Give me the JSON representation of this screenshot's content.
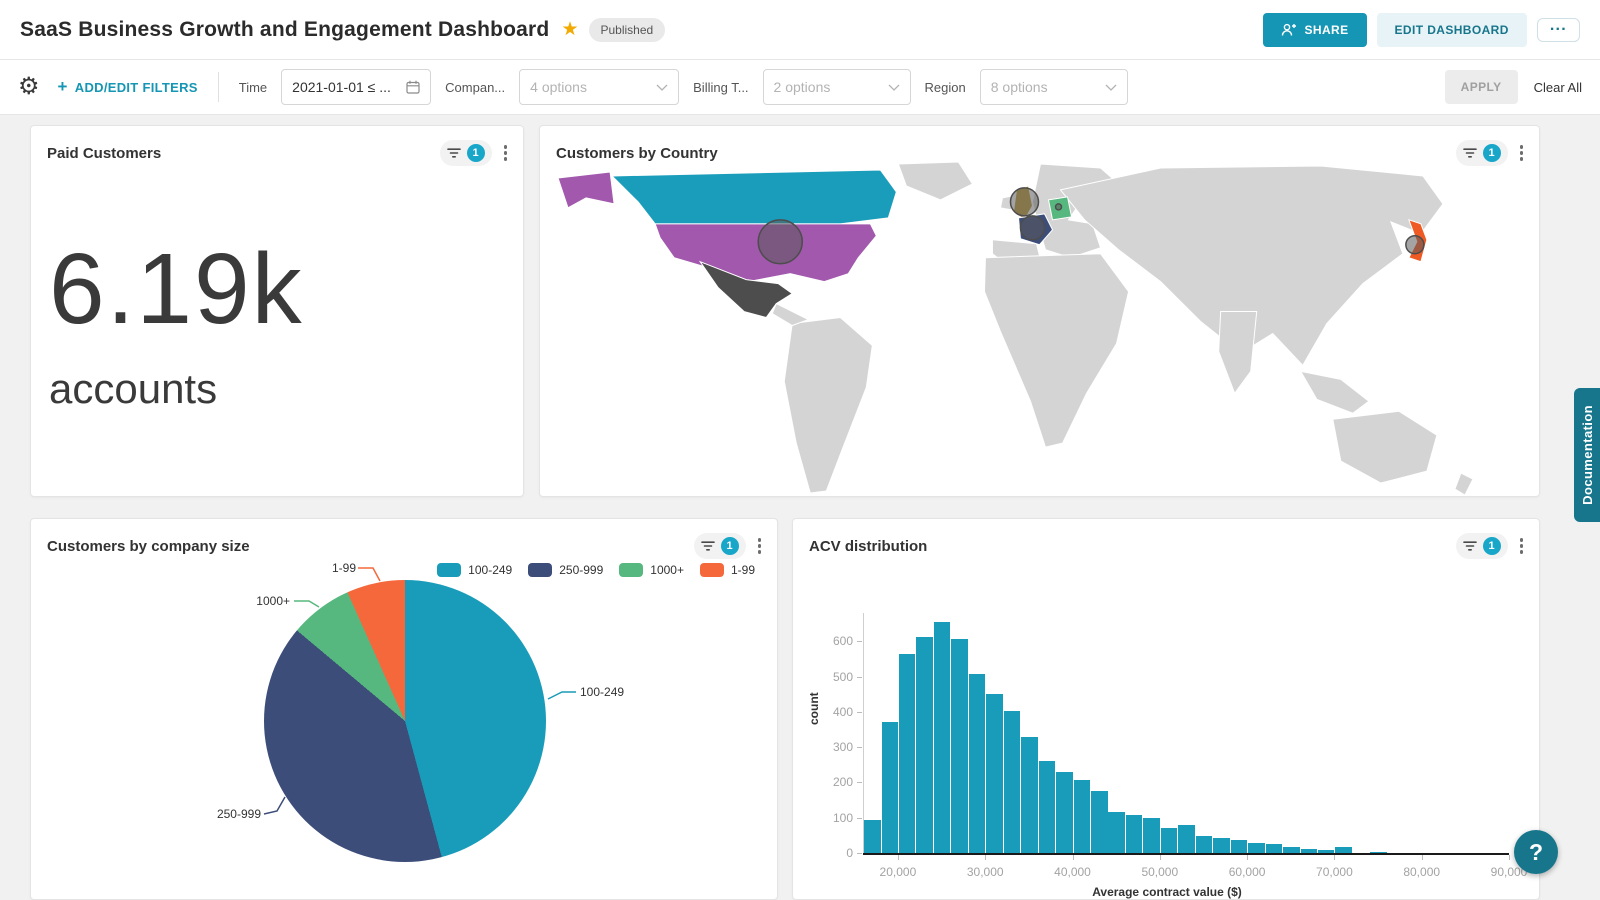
{
  "header": {
    "title": "SaaS Business Growth and Engagement Dashboard",
    "status_badge": "Published",
    "share_label": "SHARE",
    "edit_label": "EDIT DASHBOARD",
    "more_label": "···",
    "icons": {
      "star": "★",
      "share": "person-plus-icon",
      "gear": "⚙",
      "help": "?"
    },
    "accent_color": "#1596b4",
    "dark_teal": "#17768c"
  },
  "filter_bar": {
    "add_edit_label": "ADD/EDIT FILTERS",
    "plus": "+",
    "apply_label": "APPLY",
    "clear_all_label": "Clear All",
    "time_filter": {
      "label": "Time",
      "value": "2021-01-01 ≤ ..."
    },
    "company_filter": {
      "label": "Compan...",
      "value": "4 options"
    },
    "billing_filter": {
      "label": "Billing T...",
      "value": "2 options"
    },
    "region_filter": {
      "label": "Region",
      "value": "8 options"
    }
  },
  "widgets": {
    "paid_customers": {
      "title": "Paid Customers",
      "filter_count": "1",
      "value": "6.19k",
      "unit": "accounts"
    },
    "customers_by_country": {
      "title": "Customers by Country",
      "filter_count": "1",
      "countries": [
        {
          "name": "Canada",
          "color": "#1a9dbb",
          "bubble": false
        },
        {
          "name": "United States",
          "color": "#a258ad",
          "bubble": true
        },
        {
          "name": "Alaska (US)",
          "color": "#a258ad",
          "bubble": false
        },
        {
          "name": "Mexico",
          "color": "#4d4d4d",
          "bubble": false
        },
        {
          "name": "United Kingdom",
          "color": "#bb9a3d",
          "bubble": true
        },
        {
          "name": "France",
          "color": "#3d4d7a",
          "bubble": true
        },
        {
          "name": "Germany",
          "color": "#57b87f",
          "bubble": true
        },
        {
          "name": "Japan",
          "color": "#ef5a24",
          "bubble": true
        }
      ],
      "base_land_color": "#d4d4d4"
    },
    "company_size": {
      "title": "Customers by company size",
      "filter_count": "1"
    },
    "acv": {
      "title": "ACV distribution",
      "filter_count": "1"
    }
  },
  "chart_data": [
    {
      "type": "pie",
      "title": "Customers by company size",
      "labels": [
        "100-249",
        "250-999",
        "1000+",
        "1-99"
      ],
      "values": [
        45.8,
        40.3,
        7.2,
        6.7
      ],
      "colors": [
        "#199cba",
        "#3d4d7a",
        "#57b87f",
        "#f4683c"
      ],
      "legend_position": "top-right",
      "start_angle_deg": 0,
      "direction": "clockwise"
    },
    {
      "type": "bar",
      "title": "ACV distribution",
      "xlabel": "Average contract value ($)",
      "ylabel": "count",
      "bar_color": "#199cba",
      "bin_start": 16000,
      "bin_width": 2000,
      "values": [
        95,
        370,
        565,
        612,
        655,
        607,
        507,
        450,
        402,
        330,
        262,
        230,
        206,
        175,
        117,
        108,
        98,
        72,
        80,
        47,
        44,
        36,
        28,
        25,
        18,
        12,
        8,
        16,
        0,
        4
      ],
      "xlim": [
        16000,
        90000
      ],
      "ylim": [
        0,
        680
      ],
      "x_ticks": [
        20000,
        30000,
        40000,
        50000,
        60000,
        70000,
        80000,
        90000
      ],
      "y_ticks": [
        0,
        100,
        200,
        300,
        400,
        500,
        600
      ],
      "grid": false,
      "legend": false
    }
  ],
  "side": {
    "documentation_label": "Documentation",
    "help_label": "?"
  }
}
